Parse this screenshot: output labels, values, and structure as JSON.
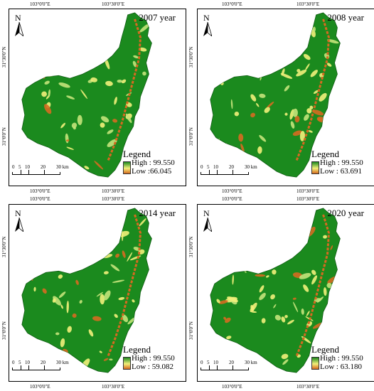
{
  "panels": [
    {
      "year": "2007 year",
      "high": "High : 99.550",
      "low": "Low :66.045"
    },
    {
      "year": "2008 year",
      "high": "High : 99.550",
      "low": "Low : 63.691"
    },
    {
      "year": "2014 year",
      "high": "High : 99.550",
      "low": "Low : 59.082"
    },
    {
      "year": "2020 year",
      "high": "High : 99.550",
      "low": "Low : 63.180"
    }
  ],
  "legend_title": "Legend",
  "north_label": "N",
  "scale_ticks": [
    "0",
    "5",
    "10",
    "20",
    "30 km"
  ],
  "coords": {
    "lon1": "103°0'0\"E",
    "lon2": "103°30'0\"E",
    "lat1": "31°30'0\"N",
    "lat2": "31°0'0\"N"
  },
  "colors": {
    "high": "#1b8a1e",
    "mid": "#f2f07a",
    "low": "#d66a20"
  }
}
